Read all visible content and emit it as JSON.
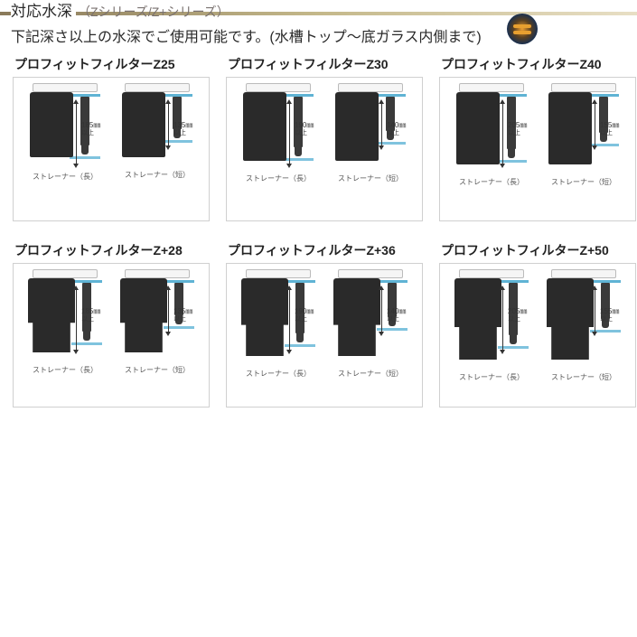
{
  "header": {
    "title": "対応水深",
    "subtitle": "（Zシリーズ/Z+シリーズ）"
  },
  "description": "下記深さ以上の水深でご使用可能です。(水槽トップ～底ガラス内側まで)",
  "strainer_labels": {
    "long": "ストレーナー（長）",
    "short": "ストレーナー（短）"
  },
  "depth_unit": "㎜",
  "depth_suffix": "以上",
  "cards": [
    {
      "title": "プロフィットフィルターZ25",
      "series": "z",
      "long_depth": "185",
      "short_depth": "135",
      "shell_h": 72,
      "strainer_long_h": 54,
      "strainer_short_h": 36
    },
    {
      "title": "プロフィットフィルターZ30",
      "series": "z",
      "long_depth": "190",
      "short_depth": "140",
      "shell_h": 76,
      "strainer_long_h": 56,
      "strainer_short_h": 38
    },
    {
      "title": "プロフィットフィルターZ40",
      "series": "z",
      "long_depth": "205",
      "short_depth": "155",
      "shell_h": 80,
      "strainer_long_h": 58,
      "strainer_short_h": 40
    },
    {
      "title": "プロフィットフィルターZ+28",
      "series": "zp",
      "long_depth": "185",
      "short_depth": "135",
      "shell_h": 82,
      "strainer_long_h": 54,
      "strainer_short_h": 36
    },
    {
      "title": "プロフィットフィルターZ+36",
      "series": "zp",
      "long_depth": "190",
      "short_depth": "140",
      "shell_h": 86,
      "strainer_long_h": 56,
      "strainer_short_h": 38
    },
    {
      "title": "プロフィットフィルターZ+50",
      "series": "zp",
      "long_depth": "205",
      "short_depth": "155",
      "shell_h": 90,
      "strainer_long_h": 58,
      "strainer_short_h": 40
    }
  ],
  "colors": {
    "header_gradient_dark": "#8a7a5a",
    "header_gradient_mid": "#c4b88a",
    "header_gradient_light": "#e8dfc5",
    "card_border": "#d0d0d0",
    "shell": "#2a2a2a",
    "water": "#5fb3d4",
    "text": "#333333",
    "subtitle": "#7a7270"
  }
}
